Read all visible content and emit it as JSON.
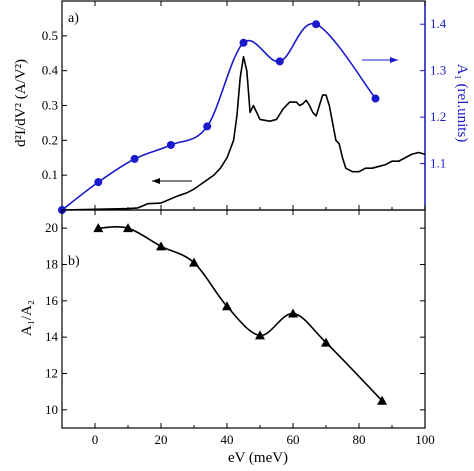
{
  "chart_data": [
    {
      "panel": "a)",
      "type": "line",
      "xlim": [
        -10,
        100
      ],
      "ylim": [
        0,
        0.6
      ],
      "ylim_right": [
        1.0,
        1.45
      ],
      "x_ticks": [
        0,
        20,
        40,
        60,
        80,
        100
      ],
      "y_ticks": [
        0.1,
        0.2,
        0.3,
        0.4,
        0.5
      ],
      "y_ticks_right": [
        1.1,
        1.2,
        1.3,
        1.4
      ],
      "ylabel": "d²I/dV² (A/V²)",
      "ylabel_right": "A₁ (rel.units)",
      "series": [
        {
          "axis": "left",
          "color": "#000000",
          "x": [
            -10,
            0,
            5,
            10,
            13,
            16,
            20,
            25,
            28,
            30,
            33,
            36,
            38,
            40,
            42,
            43,
            44,
            45,
            46,
            47,
            48,
            50,
            53,
            55,
            57,
            59,
            61,
            62,
            63,
            64,
            65,
            66,
            67,
            68,
            69,
            70,
            71,
            72,
            73,
            74,
            75,
            76,
            78,
            80,
            82,
            84,
            86,
            88,
            90,
            92,
            94,
            96,
            98,
            100
          ],
          "values": [
            0,
            0.002,
            0.003,
            0.004,
            0.006,
            0.018,
            0.02,
            0.04,
            0.05,
            0.06,
            0.08,
            0.1,
            0.12,
            0.15,
            0.2,
            0.27,
            0.38,
            0.44,
            0.4,
            0.28,
            0.3,
            0.26,
            0.255,
            0.26,
            0.29,
            0.31,
            0.31,
            0.3,
            0.305,
            0.315,
            0.3,
            0.28,
            0.27,
            0.3,
            0.33,
            0.33,
            0.3,
            0.25,
            0.2,
            0.19,
            0.15,
            0.12,
            0.11,
            0.11,
            0.12,
            0.12,
            0.125,
            0.13,
            0.14,
            0.14,
            0.15,
            0.16,
            0.165,
            0.16
          ]
        },
        {
          "axis": "right",
          "color": "#1a1acc",
          "marker": "circle",
          "x": [
            -10,
            1,
            12,
            23,
            34,
            45,
            56,
            67,
            85
          ],
          "values": [
            1.0,
            1.06,
            1.11,
            1.14,
            1.18,
            1.36,
            1.32,
            1.4,
            1.24
          ]
        }
      ],
      "annotations": [
        "left arrow near black curve",
        "right arrow near blue curve"
      ]
    },
    {
      "panel": "b)",
      "type": "line",
      "xlim": [
        -10,
        100
      ],
      "ylim": [
        9,
        21
      ],
      "x_ticks": [
        0,
        20,
        40,
        60,
        80,
        100
      ],
      "y_ticks": [
        10,
        12,
        14,
        16,
        18,
        20
      ],
      "xlabel": "eV (meV)",
      "ylabel": "A₁/A₂",
      "series": [
        {
          "color": "#000000",
          "marker": "triangle",
          "x": [
            1,
            10,
            20,
            30,
            40,
            50,
            60,
            70,
            87
          ],
          "values": [
            20.0,
            20.0,
            19.0,
            18.1,
            15.7,
            14.1,
            15.3,
            13.7,
            10.5
          ]
        }
      ]
    }
  ]
}
